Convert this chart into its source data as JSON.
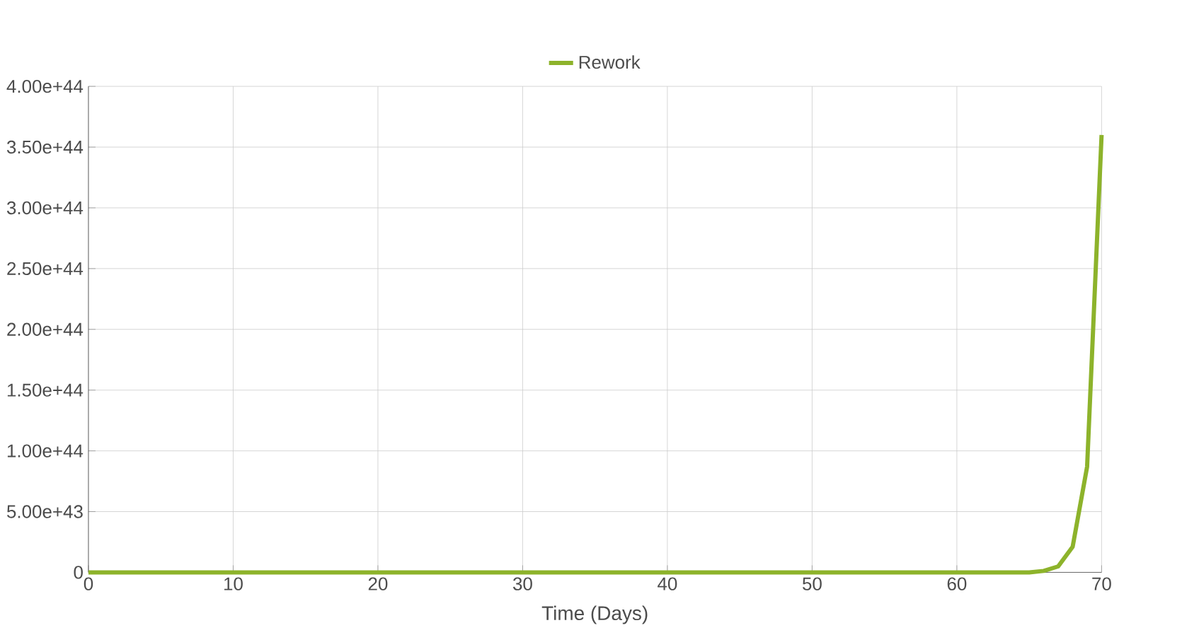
{
  "chart_data": {
    "type": "line",
    "xlabel": "Time (Days)",
    "x": [
      0,
      10,
      20,
      30,
      40,
      50,
      60,
      64,
      65,
      66,
      67,
      68,
      69,
      70
    ],
    "series": [
      {
        "name": "Rework",
        "color": "#8db32b",
        "values": [
          0,
          0,
          0,
          0,
          0,
          0,
          0,
          0,
          0,
          1.2e+42,
          4.9e+42,
          2.1e+43,
          8.7e+43,
          3.6e+44
        ]
      }
    ],
    "xlim": [
      0,
      70
    ],
    "xticks": [
      0,
      10,
      20,
      30,
      40,
      50,
      60,
      70
    ],
    "ylim": [
      0,
      4e+44
    ],
    "yticks": [
      {
        "value": 0,
        "label": "0"
      },
      {
        "value": 5e+43,
        "label": "5.00e+43"
      },
      {
        "value": 1e+44,
        "label": "1.00e+44"
      },
      {
        "value": 1.5e+44,
        "label": "1.50e+44"
      },
      {
        "value": 2e+44,
        "label": "2.00e+44"
      },
      {
        "value": 2.5e+44,
        "label": "2.50e+44"
      },
      {
        "value": 3e+44,
        "label": "3.00e+44"
      },
      {
        "value": 3.5e+44,
        "label": "3.50e+44"
      },
      {
        "value": 4e+44,
        "label": "4.00e+44"
      }
    ],
    "grid": true,
    "legend": "top",
    "marker": "none",
    "line_style": "solid"
  }
}
